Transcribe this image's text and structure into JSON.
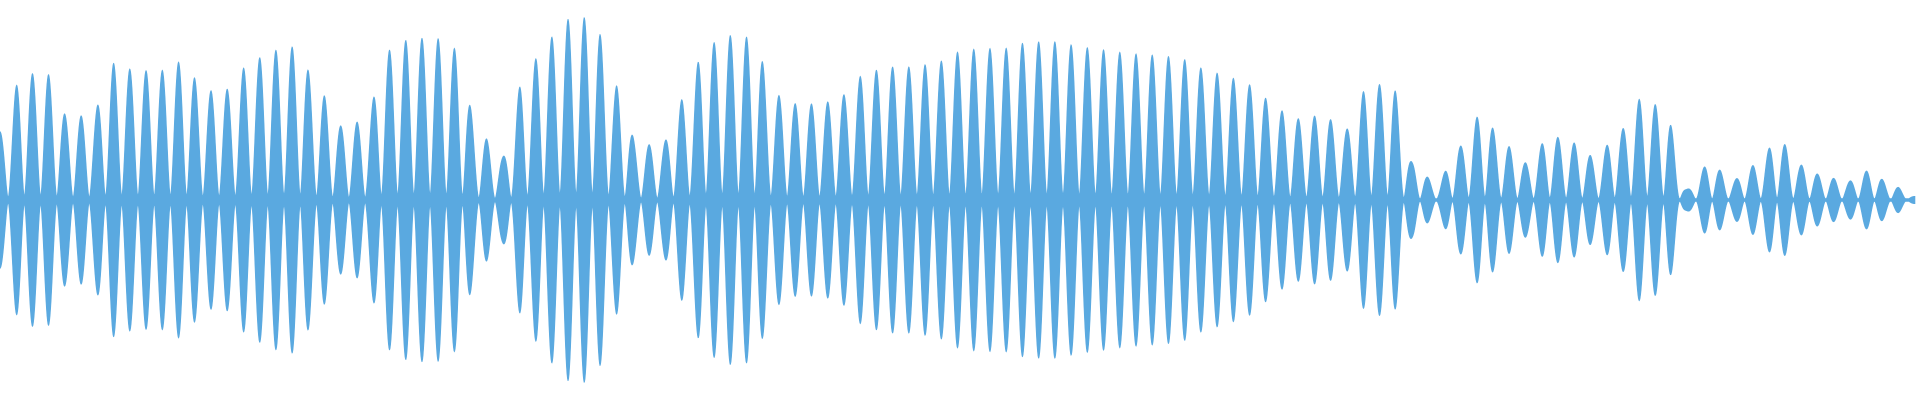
{
  "waveform": {
    "color": "#5AA9E0",
    "background": "#FFFFFF",
    "envelope": [
      0.37,
      0.68,
      0.69,
      0.45,
      0.46,
      0.74,
      0.7,
      0.7,
      0.75,
      0.59,
      0.6,
      0.75,
      0.81,
      0.83,
      0.59,
      0.4,
      0.43,
      0.81,
      0.87,
      0.88,
      0.82,
      0.37,
      0.23,
      0.66,
      0.87,
      0.98,
      0.99,
      0.62,
      0.3,
      0.3,
      0.55,
      0.84,
      0.89,
      0.88,
      0.57,
      0.52,
      0.52,
      0.57,
      0.69,
      0.72,
      0.72,
      0.74,
      0.8,
      0.82,
      0.82,
      0.85,
      0.86,
      0.84,
      0.82,
      0.8,
      0.79,
      0.78,
      0.76,
      0.7,
      0.66,
      0.62,
      0.49,
      0.44,
      0.46,
      0.38,
      0.61,
      0.64,
      0.2,
      0.09,
      0.29,
      0.47,
      0.3,
      0.2,
      0.35,
      0.31,
      0.23,
      0.37,
      0.55,
      0.5,
      0.06,
      0.2,
      0.11,
      0.19,
      0.33,
      0.19,
      0.13,
      0.1,
      0.16,
      0.08,
      0.02
    ],
    "cycles": 118
  }
}
